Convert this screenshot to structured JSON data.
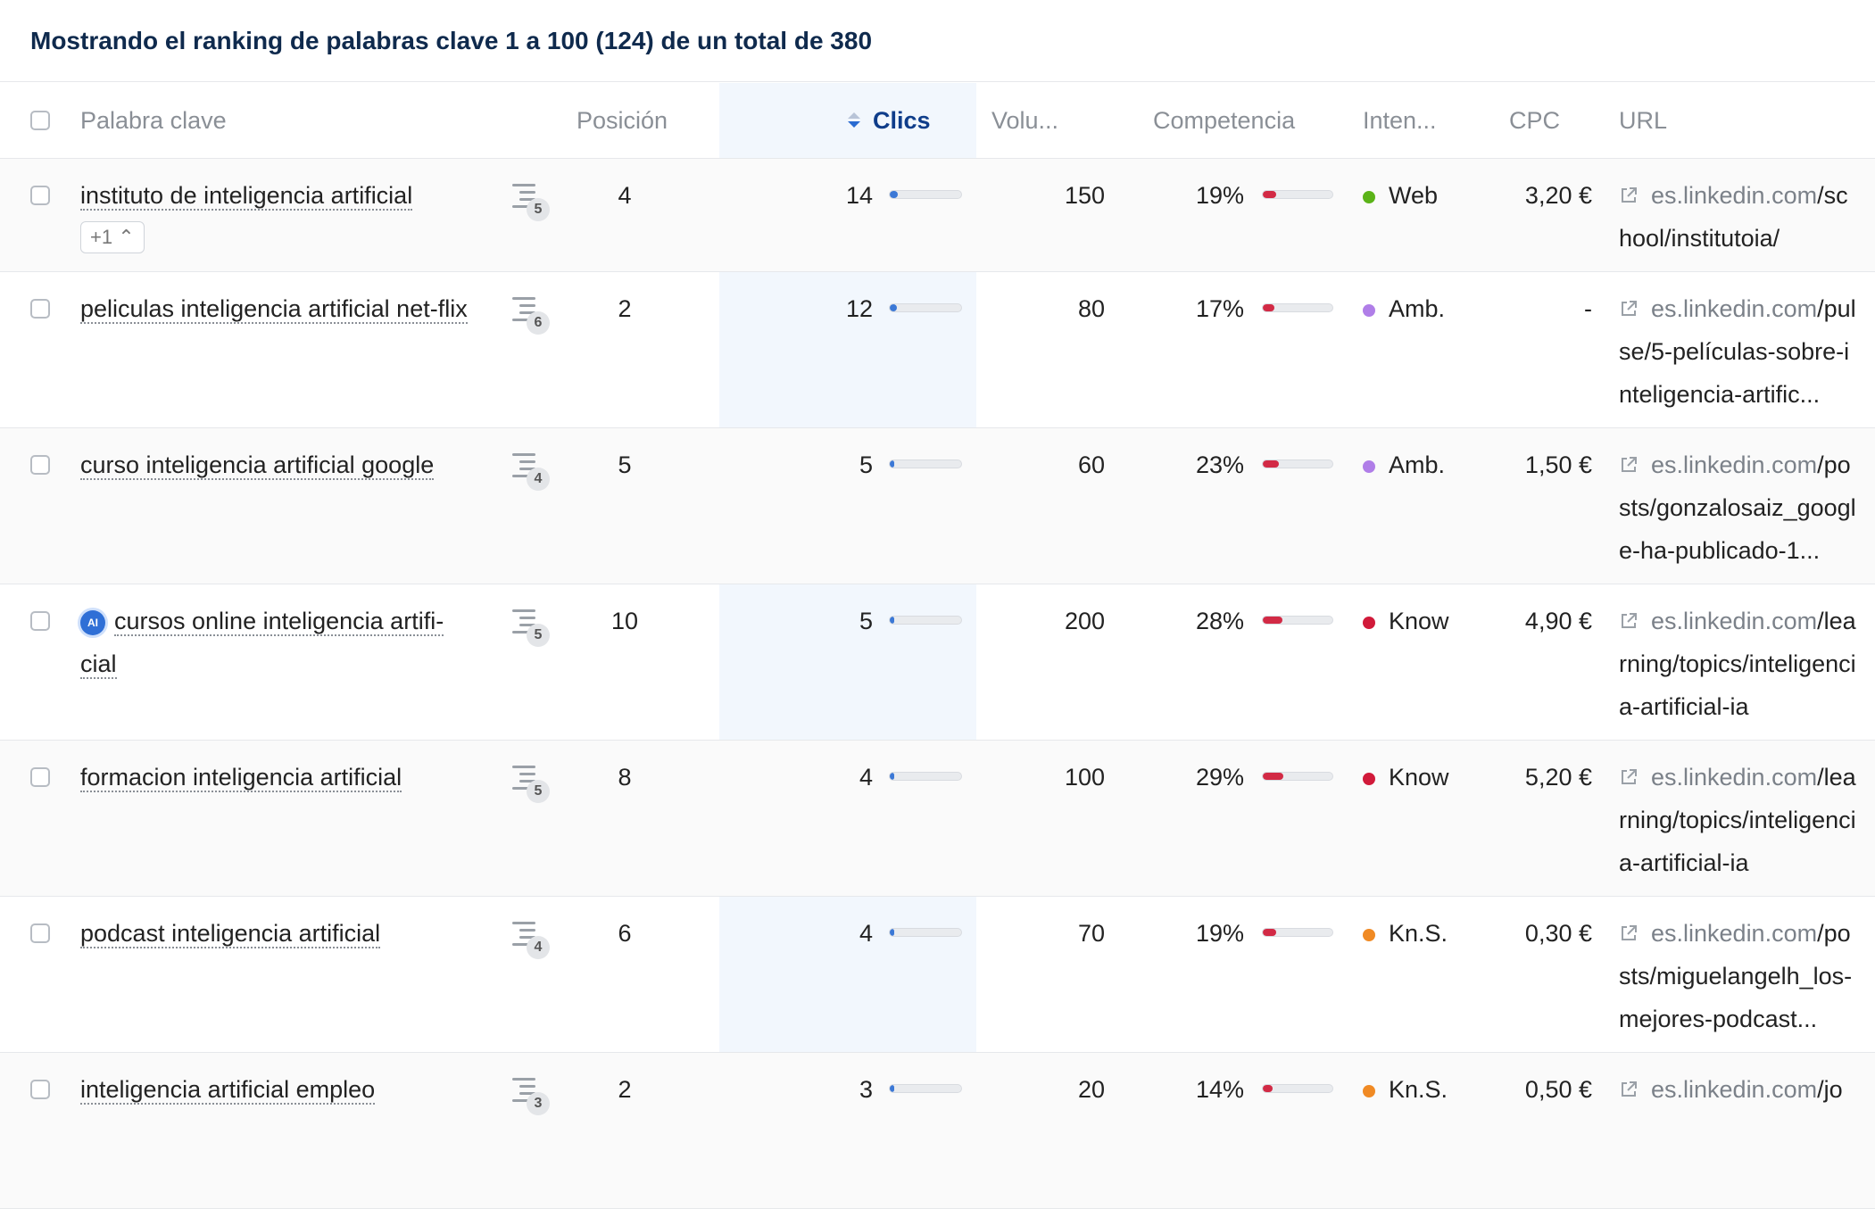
{
  "header": {
    "title": "Mostrando el ranking de palabras clave 1 a 100 (124) de un total de 380"
  },
  "columns": {
    "keyword": "Palabra clave",
    "position": "Posición",
    "clicks": "Clics",
    "volume": "Volu...",
    "competition": "Competencia",
    "intent": "Inten...",
    "cpc": "CPC",
    "url": "URL"
  },
  "colors": {
    "web": "#5bb318",
    "amb": "#b07ee8",
    "know": "#d11a3a",
    "kns": "#f08a24",
    "clicks_bar": "#3b78d6",
    "comp_bar": "#d22a45"
  },
  "rows": [
    {
      "keyword": "instituto de inteligencia artificial",
      "more": "+1",
      "serp": "5",
      "position": "4",
      "clicks": "14",
      "clicks_level": 0.14,
      "volume": "150",
      "competition": "19%",
      "comp_level": 0.19,
      "intent": "Web",
      "intent_color": "#5bb318",
      "cpc": "3,20 €",
      "url_domain": "es.linkedin.com",
      "url_path": "/school/institutoia/"
    },
    {
      "keyword": "peliculas inteligencia artificial net-flix",
      "serp": "6",
      "position": "2",
      "clicks": "12",
      "clicks_level": 0.12,
      "volume": "80",
      "competition": "17%",
      "comp_level": 0.17,
      "intent": "Amb.",
      "intent_color": "#b07ee8",
      "cpc": "-",
      "url_domain": "es.linkedin.com",
      "url_path": "/pulse/5-películas-sobre-inteligencia-artific..."
    },
    {
      "keyword": "curso inteligencia artificial google",
      "serp": "4",
      "position": "5",
      "clicks": "5",
      "clicks_level": 0.05,
      "volume": "60",
      "competition": "23%",
      "comp_level": 0.23,
      "intent": "Amb.",
      "intent_color": "#b07ee8",
      "cpc": "1,50 €",
      "url_domain": "es.linkedin.com",
      "url_path": "/posts/gonzalosaiz_google-ha-publicado-1..."
    },
    {
      "keyword": "cursos online inteligencia artifi-cial",
      "ai": "AI",
      "serp": "5",
      "position": "10",
      "clicks": "5",
      "clicks_level": 0.05,
      "volume": "200",
      "competition": "28%",
      "comp_level": 0.28,
      "intent": "Know",
      "intent_color": "#d11a3a",
      "cpc": "4,90 €",
      "url_domain": "es.linkedin.com",
      "url_path": "/learning/topics/inteligencia-artificial-ia"
    },
    {
      "keyword": "formacion inteligencia artificial",
      "serp": "5",
      "position": "8",
      "clicks": "4",
      "clicks_level": 0.04,
      "volume": "100",
      "competition": "29%",
      "comp_level": 0.29,
      "intent": "Know",
      "intent_color": "#d11a3a",
      "cpc": "5,20 €",
      "url_domain": "es.linkedin.com",
      "url_path": "/learning/topics/inteligencia-artificial-ia"
    },
    {
      "keyword": "podcast inteligencia artificial",
      "serp": "4",
      "position": "6",
      "clicks": "4",
      "clicks_level": 0.04,
      "volume": "70",
      "competition": "19%",
      "comp_level": 0.19,
      "intent": "Kn.S.",
      "intent_color": "#f08a24",
      "cpc": "0,30 €",
      "url_domain": "es.linkedin.com",
      "url_path": "/posts/miguelangelh_los-mejores-podcast..."
    },
    {
      "keyword": "inteligencia artificial empleo",
      "serp": "3",
      "position": "2",
      "clicks": "3",
      "clicks_level": 0.03,
      "volume": "20",
      "competition": "14%",
      "comp_level": 0.14,
      "intent": "Kn.S.",
      "intent_color": "#f08a24",
      "cpc": "0,50 €",
      "url_domain": "es.linkedin.com",
      "url_path": "/jo"
    }
  ]
}
